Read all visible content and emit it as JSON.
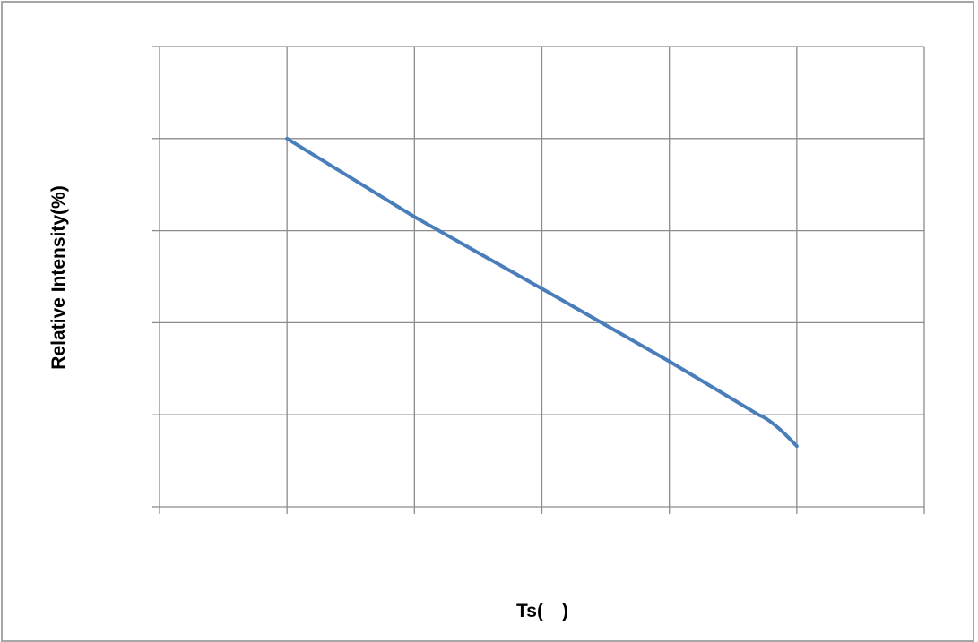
{
  "chart_data": {
    "type": "line",
    "title": "",
    "xlabel": "Ts( )",
    "ylabel": "Relative Intensity(%)",
    "x_categories": 6,
    "y_divisions": 5,
    "grid": true,
    "legend": "none",
    "series": [
      {
        "color": "#4a7ebb",
        "points": [
          [
            1.0,
            4.0
          ],
          [
            2.0,
            3.15
          ],
          [
            3.0,
            2.37
          ],
          [
            4.0,
            1.58
          ],
          [
            4.7,
            1.0
          ],
          [
            5.0,
            0.66
          ]
        ]
      }
    ],
    "xlim": [
      0,
      6
    ],
    "ylim": [
      0,
      5
    ]
  }
}
